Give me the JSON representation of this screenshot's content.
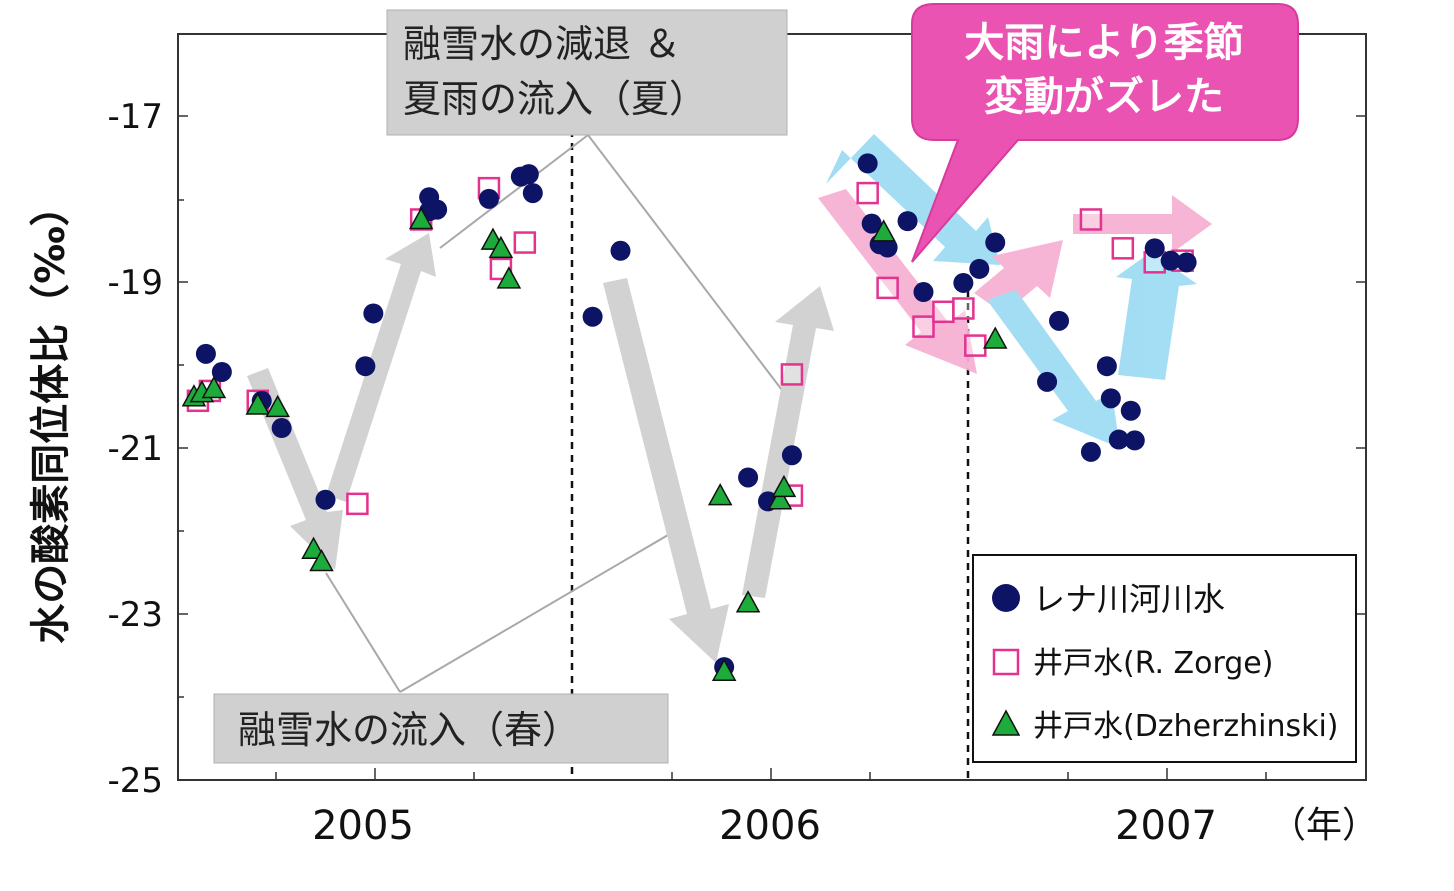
{
  "chart_data": {
    "type": "scatter",
    "ylabel": "水の酸素同位体比（‰）",
    "xunit_label": "（年）",
    "x_ticks": [
      "2005",
      "2006",
      "2007"
    ],
    "x_tick_values": [
      2005.0,
      2006.0,
      2007.0
    ],
    "y_ticks": [
      "-17",
      "-19",
      "-21",
      "-23",
      "-25"
    ],
    "y_tick_values": [
      -17,
      -19,
      -21,
      -23,
      -25
    ],
    "xlim": [
      2004.5,
      2007.48
    ],
    "ylim": [
      -25,
      -15.95
    ],
    "grid": false,
    "dashed_lines_x": [
      2005.5,
      2006.5
    ],
    "legend_position": "bottom-right",
    "series": [
      {
        "name": "レナ川河川水",
        "marker": "circle",
        "color": "#0d1466",
        "points": [
          [
            2004.57,
            -19.83
          ],
          [
            2004.61,
            -20.05
          ],
          [
            2004.71,
            -20.4
          ],
          [
            2004.76,
            -20.73
          ],
          [
            2004.87,
            -21.6
          ],
          [
            2004.97,
            -19.98
          ],
          [
            2004.99,
            -19.34
          ],
          [
            2005.13,
            -18.1
          ],
          [
            2005.13,
            -17.93
          ],
          [
            2005.15,
            -18.08
          ],
          [
            2005.28,
            -17.95
          ],
          [
            2005.36,
            -17.68
          ],
          [
            2005.38,
            -17.65
          ],
          [
            2005.39,
            -17.88
          ],
          [
            2005.54,
            -19.38
          ],
          [
            2005.61,
            -18.58
          ],
          [
            2005.87,
            -23.63
          ],
          [
            2005.93,
            -21.33
          ],
          [
            2005.98,
            -21.62
          ],
          [
            2006.04,
            -21.06
          ],
          [
            2006.23,
            -17.52
          ],
          [
            2006.24,
            -18.25
          ],
          [
            2006.26,
            -18.5
          ],
          [
            2006.28,
            -18.54
          ],
          [
            2006.33,
            -18.22
          ],
          [
            2006.37,
            -19.08
          ],
          [
            2006.47,
            -18.97
          ],
          [
            2006.51,
            -18.8
          ],
          [
            2006.55,
            -18.48
          ],
          [
            2006.68,
            -20.17
          ],
          [
            2006.71,
            -19.43
          ],
          [
            2006.79,
            -21.02
          ],
          [
            2006.83,
            -19.98
          ],
          [
            2006.84,
            -20.37
          ],
          [
            2006.86,
            -20.87
          ],
          [
            2006.89,
            -20.52
          ],
          [
            2006.9,
            -20.88
          ],
          [
            2006.95,
            -18.55
          ],
          [
            2006.99,
            -18.7
          ],
          [
            2007.03,
            -18.72
          ]
        ]
      },
      {
        "name": "井戸水(R. Zorge)",
        "marker": "square",
        "color": "#e3338f",
        "points": [
          [
            2004.55,
            -20.4
          ],
          [
            2004.58,
            -20.28
          ],
          [
            2004.7,
            -20.4
          ],
          [
            2004.95,
            -21.65
          ],
          [
            2005.11,
            -18.2
          ],
          [
            2005.28,
            -17.82
          ],
          [
            2005.31,
            -18.8
          ],
          [
            2005.37,
            -18.48
          ],
          [
            2006.04,
            -20.08
          ],
          [
            2006.04,
            -21.55
          ],
          [
            2006.23,
            -17.88
          ],
          [
            2006.28,
            -19.03
          ],
          [
            2006.37,
            -19.5
          ],
          [
            2006.42,
            -19.32
          ],
          [
            2006.47,
            -19.28
          ],
          [
            2006.5,
            -19.73
          ],
          [
            2006.79,
            -18.2
          ],
          [
            2006.87,
            -18.55
          ],
          [
            2006.95,
            -18.72
          ],
          [
            2007.02,
            -18.7
          ]
        ]
      },
      {
        "name": "井戸水(Dzherzhinski)",
        "marker": "triangle",
        "color": "#1dab3c",
        "points": [
          [
            2004.54,
            -20.35
          ],
          [
            2004.56,
            -20.3
          ],
          [
            2004.59,
            -20.25
          ],
          [
            2004.7,
            -20.45
          ],
          [
            2004.75,
            -20.48
          ],
          [
            2004.84,
            -22.2
          ],
          [
            2004.86,
            -22.35
          ],
          [
            2005.11,
            -18.2
          ],
          [
            2005.29,
            -18.45
          ],
          [
            2005.31,
            -18.55
          ],
          [
            2005.33,
            -18.92
          ],
          [
            2005.86,
            -21.55
          ],
          [
            2005.87,
            -23.68
          ],
          [
            2005.93,
            -22.85
          ],
          [
            2006.01,
            -21.6
          ],
          [
            2006.02,
            -21.45
          ],
          [
            2006.27,
            -18.35
          ],
          [
            2006.55,
            -19.65
          ]
        ]
      }
    ],
    "annotations": [
      {
        "text": [
          "融雪水の減退 ＆",
          "夏雨の流入（夏）"
        ],
        "style": "gray-box"
      },
      {
        "text": [
          "融雪水の流入（春）"
        ],
        "style": "gray-box"
      },
      {
        "text": [
          "大雨により季節",
          "変動がズレた"
        ],
        "style": "pink-callout"
      }
    ]
  },
  "colors": {
    "axis": "#333333",
    "gray_arrow": "#d2d2d2",
    "gray_box": "#d0d0d0",
    "callout": "#ea53b1",
    "blue_arrow": "#9fdcf4",
    "pink_arrow": "#f7b2d4"
  }
}
